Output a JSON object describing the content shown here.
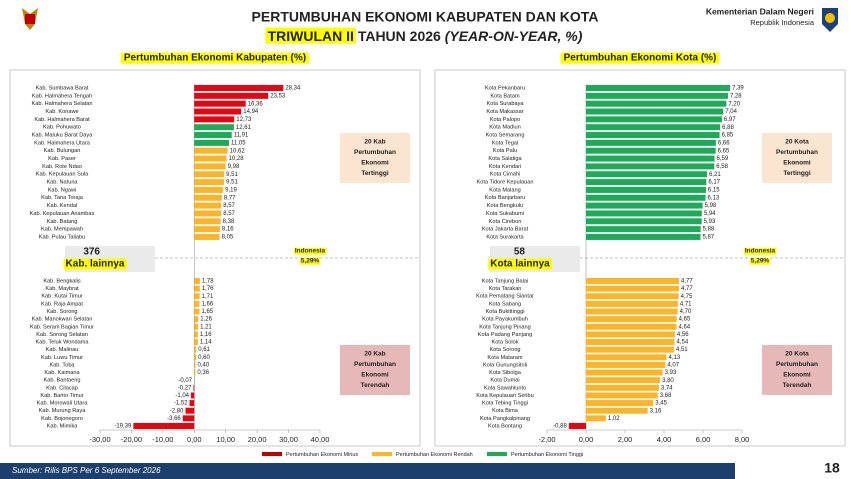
{
  "header": {
    "title_line1": "PERTUMBUHAN EKONOMI KABUPATEN DAN KOTA",
    "title_highlight": "TRIWULAN II",
    "title_rest": "TAHUN 2026",
    "title_italic": "(YEAR-ON-YEAR, %)",
    "org_name": "Kementerian Dalam Negeri",
    "org_sub": "Republik Indonesia"
  },
  "chart_data": [
    {
      "type": "hbar",
      "title": "Pertumbuhan Ekonomi Kabupaten (%)",
      "xlim": [
        -30,
        40
      ],
      "xticks": [
        {
          "value": -30,
          "label": "-30,00"
        },
        {
          "value": -20,
          "label": "-20,00"
        },
        {
          "value": -10,
          "label": "-10,00"
        },
        {
          "value": 0,
          "label": "0,00"
        },
        {
          "value": 10,
          "label": "10,00"
        },
        {
          "value": 20,
          "label": "20,00"
        },
        {
          "value": 30,
          "label": "30,00"
        },
        {
          "value": 40,
          "label": "40,00"
        }
      ],
      "others_count": 376,
      "others_label": "Kab. lainnya",
      "benchmark_name": "Indonesia",
      "benchmark_label": "5,29%",
      "groups": [
        {
          "note": [
            "20 Kab",
            "Pertumbuhan",
            "Ekonomi",
            "Tertinggi"
          ],
          "categories": [
            "Kab. Sumbawa Barat",
            "Kab. Halmahera Tengah",
            "Kab. Halmahera Selatan",
            "Kab. Konawe",
            "Kab. Halmahera Barat",
            "Kab. Pohuwato",
            "Kab. Maluku Barat Daya",
            "Kab. Halmahera Utara",
            "Kab. Bulungan",
            "Kab. Paser",
            "Kab. Rote Ndao",
            "Kab. Kepulauan Sula",
            "Kab. Natuna",
            "Kab. Ngawi",
            "Kab. Tana Toraja",
            "Kab. Kendal",
            "Kab. Kepulauan Anambas",
            "Kab. Batang",
            "Kab. Mempawah",
            "Kab. Pulau Taliabu"
          ],
          "values": [
            28.34,
            23.53,
            16.36,
            14.94,
            12.73,
            12.61,
            11.91,
            11.05,
            10.62,
            10.28,
            9.98,
            9.51,
            9.51,
            9.19,
            8.77,
            8.57,
            8.57,
            8.38,
            8.16,
            8.05
          ],
          "value_labels": [
            "28,34",
            "23,53",
            "16,36",
            "14,94",
            "12,73",
            "12,61",
            "11,91",
            "11,05",
            "10,62",
            "10,28",
            "9,98",
            "9,51",
            "9,51",
            "9,19",
            "8,77",
            "8,57",
            "8,57",
            "8,38",
            "8,16",
            "8,05"
          ],
          "colors": [
            "#e30613",
            "#e30613",
            "#e30613",
            "#e30613",
            "#e30613",
            "#1faa59",
            "#1faa59",
            "#1faa59",
            "#fbb52b",
            "#fbb52b",
            "#fbb52b",
            "#fbb52b",
            "#fbb52b",
            "#fbb52b",
            "#fbb52b",
            "#fbb52b",
            "#fbb52b",
            "#fbb52b",
            "#fbb52b",
            "#fbb52b"
          ]
        },
        {
          "note": [
            "20 Kab",
            "Pertumbuhan",
            "Ekonomi",
            "Terendah"
          ],
          "categories": [
            "Kab. Bengkalis",
            "Kab. Maybrat",
            "Kab. Kutai Timur",
            "Kab. Raja Ampat",
            "Kab. Sorong",
            "Kab. Manokwari Selatan",
            "Kab. Seram Bagian Timur",
            "Kab. Sorong Selatan",
            "Kab. Teluk Wondama",
            "Kab. Malinau",
            "Kab. Luwu Timur",
            "Kab. Toba",
            "Kab. Kaimana",
            "Kab. Bantaeng",
            "Kab. Cilacap",
            "Kab. Barito Timur",
            "Kab. Morowali Utara",
            "Kab. Murung Raya",
            "Kab. Bojonegoro",
            "Kab. Mimika"
          ],
          "values": [
            1.78,
            1.76,
            1.71,
            1.66,
            1.65,
            1.26,
            1.21,
            1.16,
            1.14,
            0.61,
            0.6,
            0.4,
            0.36,
            -0.07,
            -0.27,
            -1.04,
            -1.52,
            -2.8,
            -3.66,
            -19.39
          ],
          "value_labels": [
            "1,78",
            "1,76",
            "1,71",
            "1,66",
            "1,65",
            "1,26",
            "1,21",
            "1,16",
            "1,14",
            "0,61",
            "0,60",
            "0,40",
            "0,36",
            "-0,07",
            "-0,27",
            "-1,04",
            "-1,52",
            "-2,80",
            "-3,66",
            "-19,39"
          ],
          "colors": [
            "#fbb52b",
            "#fbb52b",
            "#fbb52b",
            "#fbb52b",
            "#fbb52b",
            "#fbb52b",
            "#fbb52b",
            "#fbb52b",
            "#fbb52b",
            "#fbb52b",
            "#fbb52b",
            "#fbb52b",
            "#fbb52b",
            "#e30613",
            "#e30613",
            "#e30613",
            "#e30613",
            "#e30613",
            "#e30613",
            "#e30613"
          ]
        }
      ]
    },
    {
      "type": "hbar",
      "title": "Pertumbuhan Ekonomi Kota (%)",
      "xlim": [
        -2,
        8
      ],
      "xticks": [
        {
          "value": -2,
          "label": "-2,00"
        },
        {
          "value": 0,
          "label": "0,00"
        },
        {
          "value": 2,
          "label": "2,00"
        },
        {
          "value": 4,
          "label": "4,00"
        },
        {
          "value": 6,
          "label": "6,00"
        },
        {
          "value": 8,
          "label": "8,00"
        }
      ],
      "others_count": 58,
      "others_label": "Kota lainnya",
      "benchmark_name": "Indonesia",
      "benchmark_label": "5,29%",
      "groups": [
        {
          "note": [
            "20 Kota",
            "Pertumbuhan",
            "Ekonomi",
            "Tertinggi"
          ],
          "categories": [
            "Kota Pekanbaru",
            "Kota Batam",
            "Kota Surabaya",
            "Kota Makassar",
            "Kota Palopo",
            "Kota Madiun",
            "Kota Semarang",
            "Kota Tegal",
            "Kota Palu",
            "Kota Salatiga",
            "Kota Kendari",
            "Kota Cimahi",
            "Kota Tidore Kepulauan",
            "Kota Malang",
            "Kota Banjarbaru",
            "Kota Bengkulu",
            "Kota Sukabumi",
            "Kota Cirebon",
            "Kota Jakarta Barat",
            "Kota Surakarta"
          ],
          "values": [
            7.39,
            7.28,
            7.2,
            7.04,
            6.97,
            6.88,
            6.85,
            6.66,
            6.65,
            6.59,
            6.58,
            6.21,
            6.17,
            6.15,
            6.13,
            5.98,
            5.94,
            5.93,
            5.88,
            5.87
          ],
          "value_labels": [
            "7,39",
            "7,28",
            "7,20",
            "7,04",
            "6,97",
            "6,88",
            "6,85",
            "6,66",
            "6,65",
            "6,59",
            "6,58",
            "6,21",
            "6,17",
            "6,15",
            "6,13",
            "5,98",
            "5,94",
            "5,93",
            "5,88",
            "5,87"
          ],
          "colors": [
            "#1faa59",
            "#1faa59",
            "#1faa59",
            "#1faa59",
            "#1faa59",
            "#1faa59",
            "#1faa59",
            "#1faa59",
            "#1faa59",
            "#1faa59",
            "#1faa59",
            "#1faa59",
            "#1faa59",
            "#1faa59",
            "#1faa59",
            "#1faa59",
            "#1faa59",
            "#1faa59",
            "#1faa59",
            "#1faa59"
          ]
        },
        {
          "note": [
            "20 Kota",
            "Pertumbuhan",
            "Ekonomi",
            "Terendah"
          ],
          "categories": [
            "Kota Tanjung Balai",
            "Kota Tarakan",
            "Kota Pematang Siantar",
            "Kota Sabang",
            "Kota Bukittinggi",
            "Kota Payakumbuh",
            "Kota Tanjung Pinang",
            "Kota Padang Panjang",
            "Kota Solok",
            "Kota Sorong",
            "Kota Mataram",
            "Kota Gunungsitoli",
            "Kota Sibolga",
            "Kota Dumai",
            "Kota Sawahlunto",
            "Kota Kepulauan Seribu",
            "Kota Tebing Tinggi",
            "Kota Bima",
            "Kota Pangkalpinang",
            "Kota Bontang"
          ],
          "values": [
            4.77,
            4.77,
            4.75,
            4.71,
            4.7,
            4.65,
            4.64,
            4.56,
            4.54,
            4.51,
            4.13,
            4.07,
            3.93,
            3.8,
            3.74,
            3.68,
            3.45,
            3.16,
            1.02,
            -0.88
          ],
          "value_labels": [
            "4,77",
            "4,77",
            "4,75",
            "4,71",
            "4,70",
            "4,65",
            "4,64",
            "4,56",
            "4,54",
            "4,51",
            "4,13",
            "4,07",
            "3,93",
            "3,80",
            "3,74",
            "3,68",
            "3,45",
            "3,16",
            "1,02",
            "-0,88"
          ],
          "colors": [
            "#fbb52b",
            "#fbb52b",
            "#fbb52b",
            "#fbb52b",
            "#fbb52b",
            "#fbb52b",
            "#fbb52b",
            "#fbb52b",
            "#fbb52b",
            "#fbb52b",
            "#fbb52b",
            "#fbb52b",
            "#fbb52b",
            "#fbb52b",
            "#fbb52b",
            "#fbb52b",
            "#fbb52b",
            "#fbb52b",
            "#fbb52b",
            "#e30613"
          ]
        }
      ]
    }
  ],
  "legend": [
    {
      "name": "Pertumbuhan Ekonomi Minus",
      "color": "#c00000"
    },
    {
      "name": "Pertumbuhan Ekonomi Rendah",
      "color": "#fbb52b"
    },
    {
      "name": "Pertumbuhan Ekonomi Tinggi",
      "color": "#1faa59"
    }
  ],
  "footer": {
    "source": "Sumber: Rilis BPS Per 6 September 2026",
    "page": "18"
  }
}
